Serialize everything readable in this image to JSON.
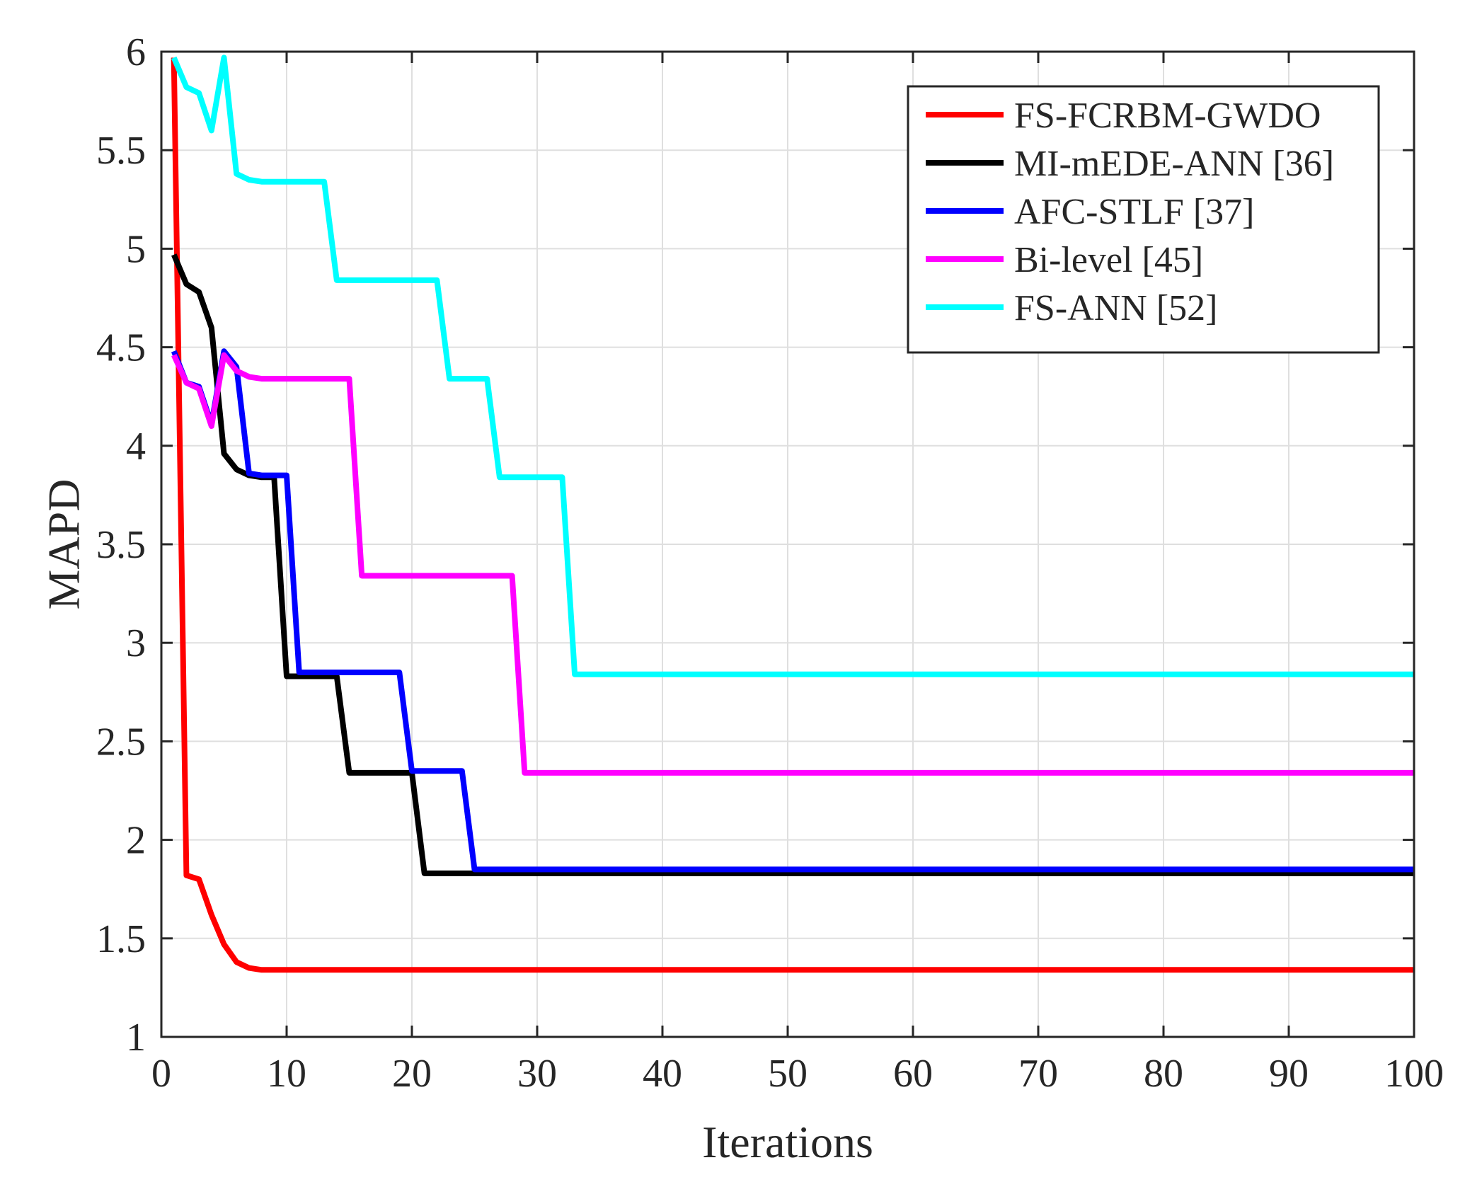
{
  "chart_data": {
    "type": "line",
    "xlabel": "Iterations",
    "ylabel": "MAPD",
    "xlim": [
      0,
      100
    ],
    "ylim": [
      1,
      6
    ],
    "grid": true,
    "legend_position": "top-right",
    "xticks": [
      0,
      10,
      20,
      30,
      40,
      50,
      60,
      70,
      80,
      90,
      100
    ],
    "xtick_labels": [
      "0",
      "10",
      "20",
      "30",
      "40",
      "50",
      "60",
      "70",
      "80",
      "90",
      "100"
    ],
    "yticks": [
      1,
      1.5,
      2,
      2.5,
      3,
      3.5,
      4,
      4.5,
      5,
      5.5,
      6
    ],
    "ytick_labels": [
      "1",
      "1.5",
      "2",
      "2.5",
      "3",
      "3.5",
      "4",
      "4.5",
      "5",
      "5.5",
      "6"
    ],
    "series": [
      {
        "name": "FS-FCRBM-GWDO",
        "color": "#ff0000",
        "x": [
          1,
          2,
          3,
          4,
          5,
          6,
          7,
          8,
          9,
          100
        ],
        "y": [
          5.97,
          1.82,
          1.8,
          1.62,
          1.47,
          1.38,
          1.35,
          1.34,
          1.34,
          1.34
        ]
      },
      {
        "name": "MI-mEDE-ANN [36]",
        "color": "#000000",
        "x": [
          1,
          2,
          3,
          4,
          5,
          6,
          7,
          8,
          9,
          10,
          11,
          14,
          15,
          20,
          21,
          100
        ],
        "y": [
          4.97,
          4.82,
          4.78,
          4.6,
          3.96,
          3.88,
          3.85,
          3.84,
          3.84,
          2.83,
          2.83,
          2.83,
          2.34,
          2.34,
          1.83,
          1.83
        ]
      },
      {
        "name": "AFC-STLF [37]",
        "color": "#0000ff",
        "x": [
          1,
          2,
          3,
          4,
          5,
          6,
          7,
          8,
          9,
          10,
          11,
          19,
          20,
          24,
          25,
          100
        ],
        "y": [
          4.48,
          4.32,
          4.3,
          4.11,
          4.48,
          4.4,
          3.86,
          3.85,
          3.85,
          3.85,
          2.85,
          2.85,
          2.35,
          2.35,
          1.85,
          1.85
        ]
      },
      {
        "name": "Bi-level [45]",
        "color": "#ff00ff",
        "x": [
          1,
          2,
          3,
          4,
          5,
          6,
          7,
          8,
          9,
          15,
          16,
          28,
          29,
          100
        ],
        "y": [
          4.46,
          4.32,
          4.29,
          4.1,
          4.46,
          4.38,
          4.35,
          4.34,
          4.34,
          4.34,
          3.34,
          3.34,
          2.34,
          2.34
        ]
      },
      {
        "name": "FS-ANN [52]",
        "color": "#00ffff",
        "x": [
          1,
          2,
          3,
          4,
          5,
          6,
          7,
          8,
          13,
          14,
          22,
          23,
          26,
          27,
          32,
          33,
          100
        ],
        "y": [
          5.97,
          5.82,
          5.79,
          5.6,
          5.97,
          5.38,
          5.35,
          5.34,
          5.34,
          4.84,
          4.84,
          4.34,
          4.34,
          3.84,
          3.84,
          2.84,
          2.84
        ]
      }
    ]
  }
}
